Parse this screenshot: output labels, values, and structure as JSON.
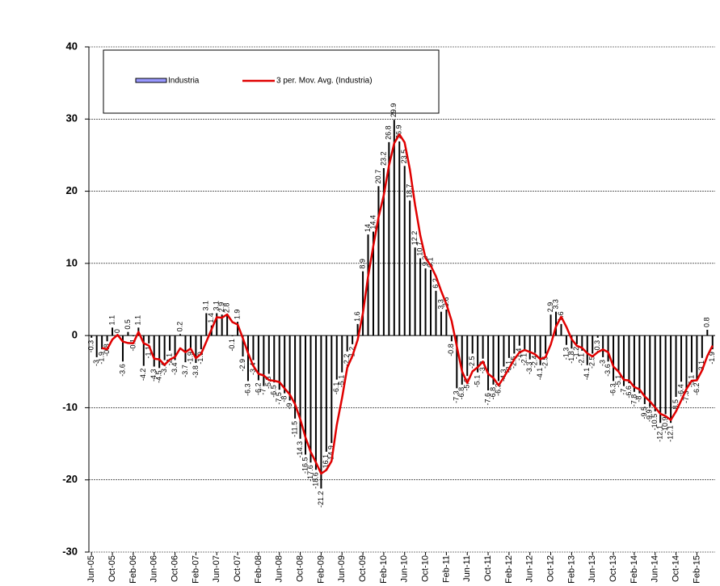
{
  "chart_data": {
    "type": "bar",
    "categories": [
      "Jun-05",
      null,
      null,
      null,
      "Oct-05",
      null,
      null,
      null,
      "Feb-06",
      null,
      null,
      null,
      "Jun-06",
      null,
      null,
      null,
      "Oct-06",
      null,
      null,
      null,
      "Feb-07",
      null,
      null,
      null,
      "Jun-07",
      null,
      null,
      null,
      "Oct-07",
      null,
      null,
      null,
      "Feb-08",
      null,
      null,
      null,
      "Jun-08",
      null,
      null,
      null,
      "Oct-08",
      null,
      null,
      null,
      "Feb-09",
      null,
      null,
      null,
      "Jun-09",
      null,
      null,
      null,
      "Oct-09",
      null,
      null,
      null,
      "Feb-10",
      null,
      null,
      null,
      "Jun-10",
      null,
      null,
      null,
      "Oct-10",
      null,
      null,
      null,
      "Feb-11",
      null,
      null,
      null,
      "Jun-11",
      null,
      null,
      null,
      "Oct-11",
      null,
      null,
      null,
      "Feb-12",
      null,
      null,
      null,
      "Jun-12",
      null,
      null,
      null,
      "Oct-12",
      null,
      null,
      null,
      "Feb-13",
      null,
      null,
      null,
      "Jun-13",
      null,
      null,
      null,
      "Oct-13",
      null,
      null,
      null,
      "Feb-14",
      null,
      null,
      null,
      "Jun-14",
      null,
      null,
      null,
      "Oct-14",
      null,
      null,
      null,
      "Feb-15",
      null,
      null,
      null
    ],
    "series": [
      {
        "name": "Industria",
        "color": "#000000",
        "values": [
          -0.3,
          -3.0,
          -1.9,
          -0.8,
          1.1,
          0.0,
          -3.6,
          0.5,
          -0.1,
          1.1,
          -4.2,
          -1.1,
          -4.3,
          -4.5,
          -3.4,
          -2.1,
          -3.4,
          0.2,
          -3.7,
          -1.9,
          -3.8,
          -1.9,
          3.1,
          1.4,
          3.1,
          2.9,
          2.8,
          -0.1,
          1.9,
          -2.9,
          -6.3,
          -3.4,
          -6.2,
          -7.0,
          -5.3,
          -6.5,
          -7.5,
          -8.0,
          -9.0,
          -11.5,
          -14.3,
          -16.5,
          -17.6,
          -18.6,
          -21.2,
          -16.1,
          -14.9,
          -6.1,
          -5.1,
          -2.2,
          -1.2,
          1.6,
          8.9,
          14.0,
          14.4,
          20.7,
          23.2,
          26.8,
          29.9,
          26.9,
          23.5,
          18.7,
          12.2,
          10.7,
          9.3,
          9.1,
          6.2,
          3.3,
          3.6,
          -0.8,
          -7.3,
          -6.8,
          -5.6,
          -2.5,
          -5.1,
          -3.2,
          -7.6,
          -6.8,
          -6.3,
          -4.3,
          -3.1,
          -2.5,
          -1.4,
          -2.1,
          -3.3,
          -2.4,
          -4.1,
          -2.5,
          2.9,
          3.3,
          1.6,
          -1.3,
          -1.8,
          -1.2,
          -2.1,
          -4.1,
          -2.5,
          -0.3,
          -3.0,
          -3.6,
          -6.3,
          -5.1,
          -7.0,
          -6.6,
          -7.8,
          -8.0,
          -9.5,
          -9.9,
          -10.5,
          -12.1,
          -10.9,
          -12.1,
          -8.5,
          -6.4,
          -7.3,
          -5.1,
          -6.2,
          -3.1,
          0.8,
          -1.9
        ]
      }
    ],
    "trendline": {
      "name": "3 per. Mov. Avg. (Industria)",
      "color": "#e00000",
      "period": 3
    },
    "ylim": [
      -30,
      40
    ],
    "yticks": [
      -30,
      -20,
      -10,
      0,
      10,
      20,
      30,
      40
    ],
    "grid": true
  }
}
